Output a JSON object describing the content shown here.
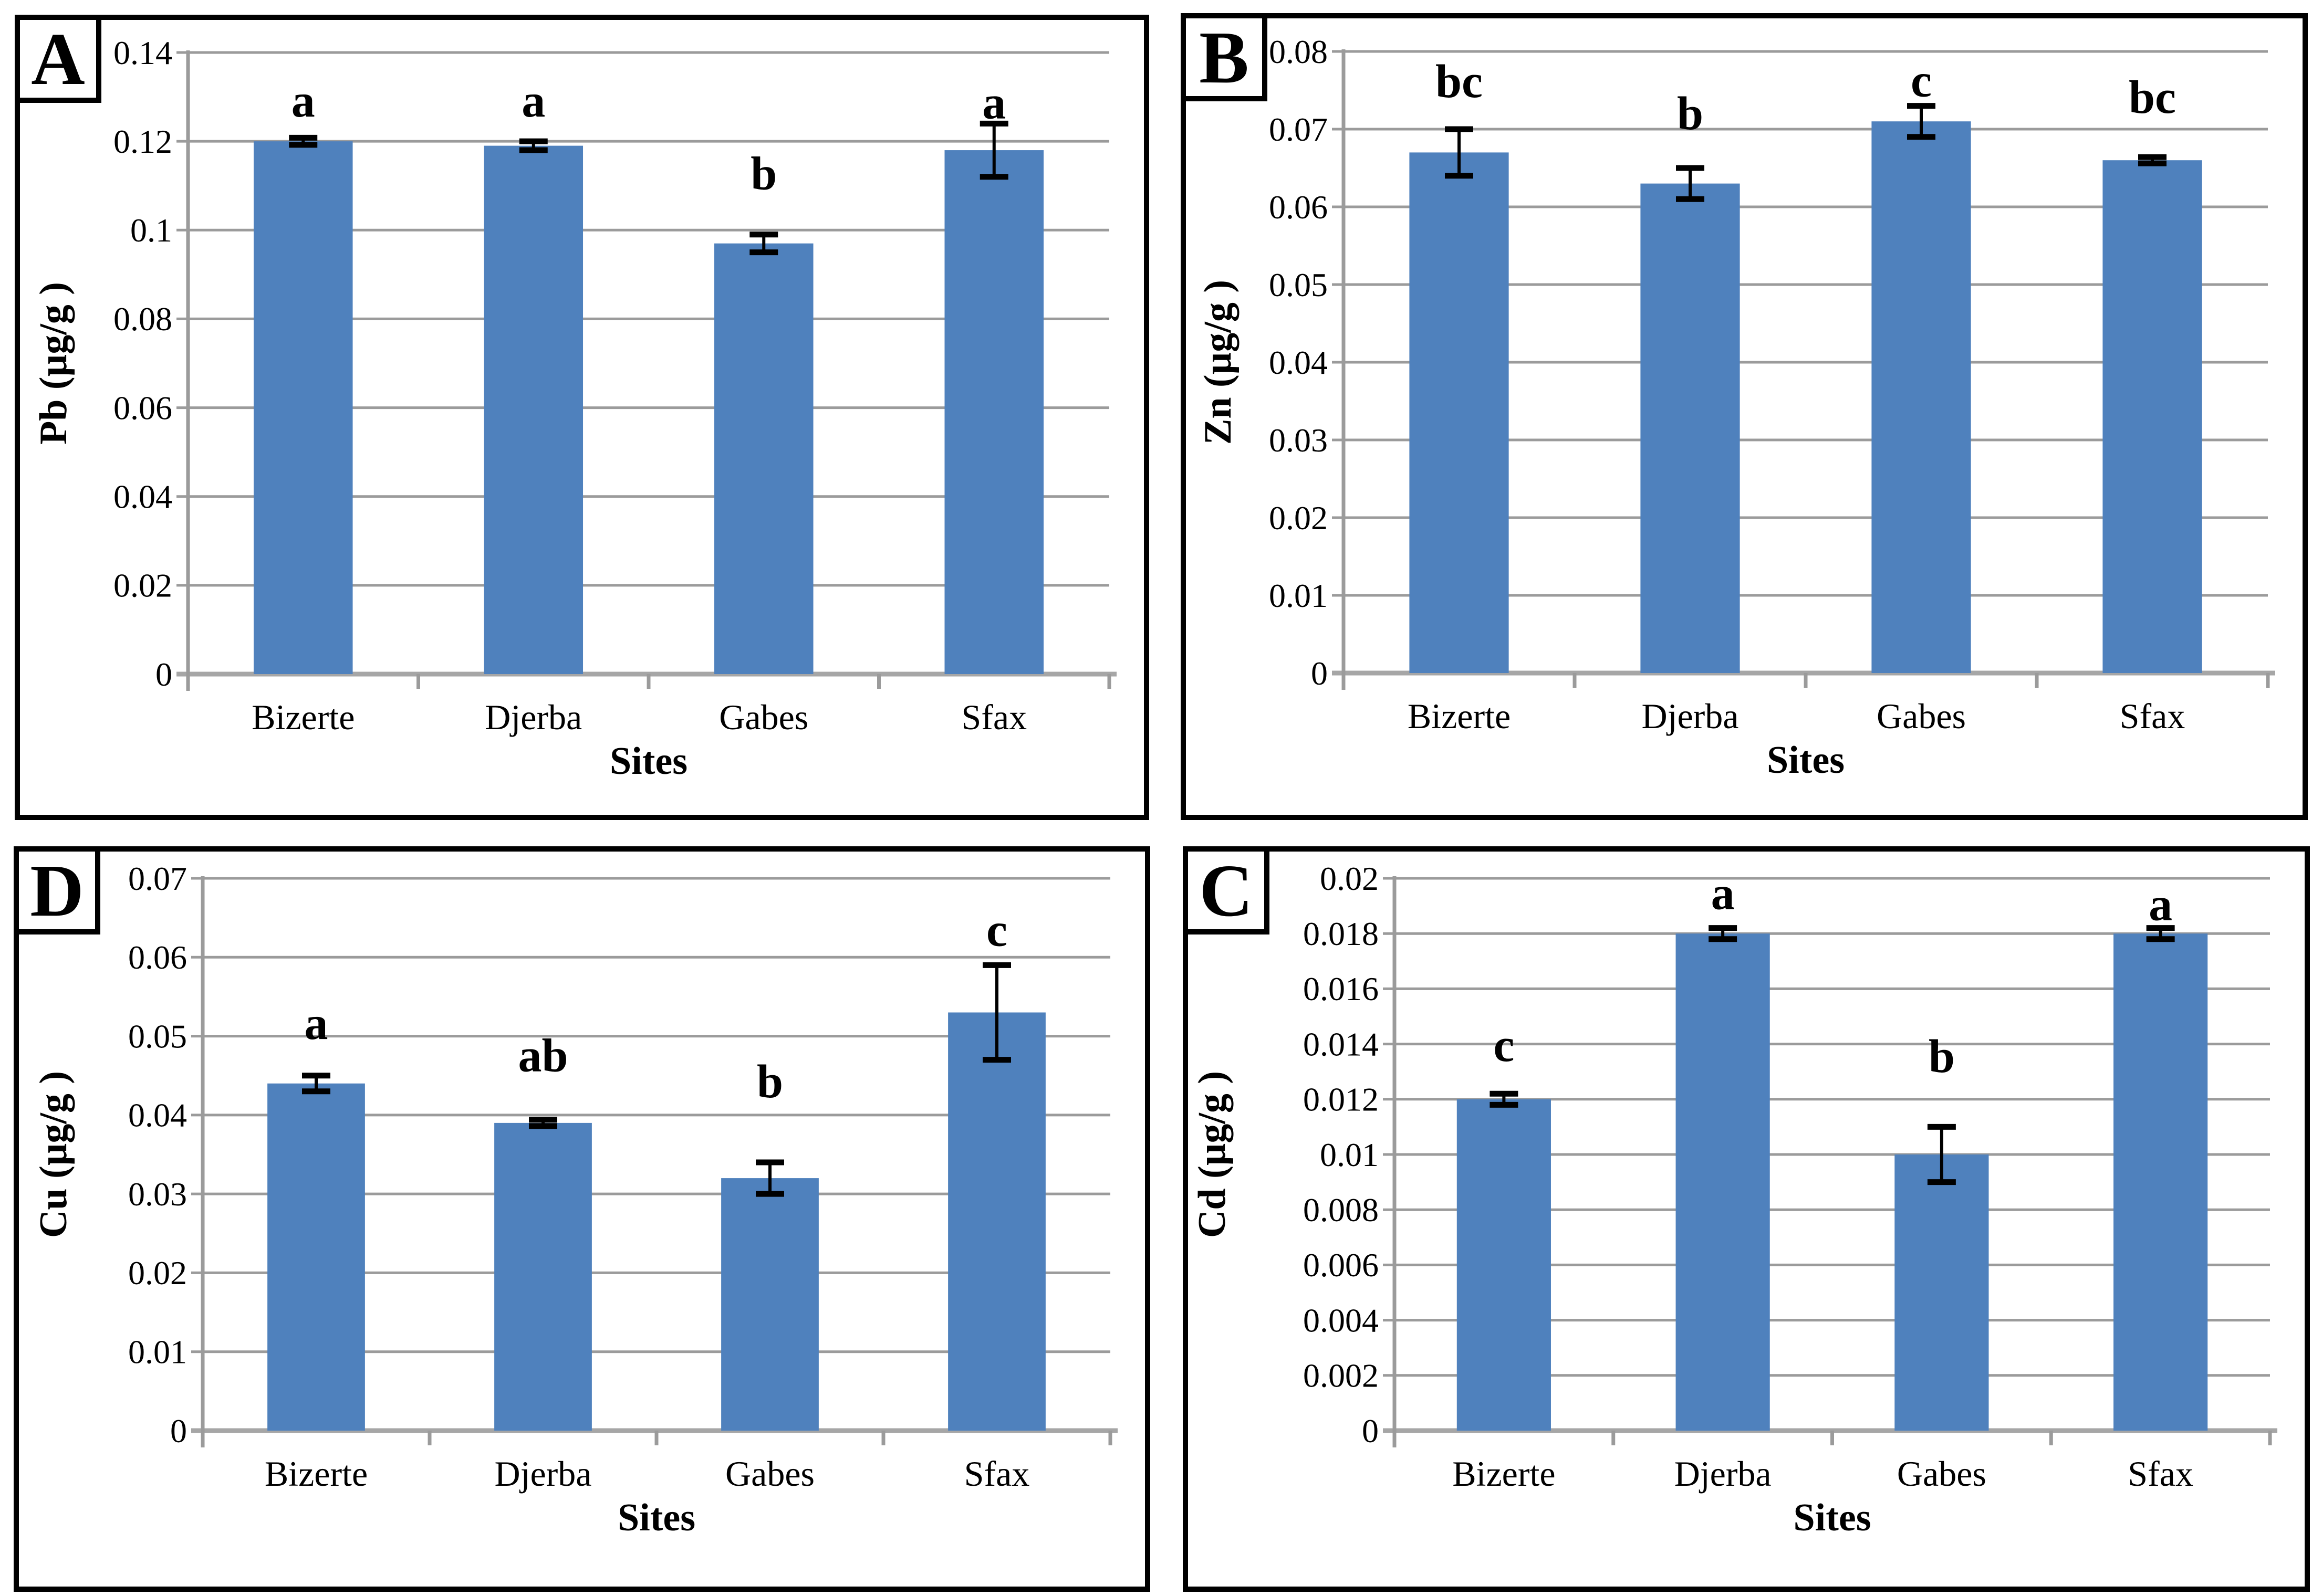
{
  "figure": {
    "background": "#ffffff",
    "x_axis_title": "Sites",
    "categories": [
      "Bizerte",
      "Djerba",
      "Gabes",
      "Sfax"
    ],
    "colors": {
      "bar": "#4F81BD",
      "gridline": "#9B9B9B",
      "baseline": "#A6A6A6",
      "axis_line": "#9B9B9B",
      "error": "#000000",
      "text": "#000000",
      "panel_border": "#000000"
    }
  },
  "chart_data": [
    {
      "panel_label": "A",
      "type": "bar",
      "position": "top-left",
      "ylabel": "Pb (µg/g )",
      "xlabel": "Sites",
      "categories": [
        "Bizerte",
        "Djerba",
        "Gabes",
        "Sfax"
      ],
      "ymax": 0.14,
      "ystep": 0.02,
      "ylim": [
        0,
        0.14
      ],
      "grid": true,
      "ytick_labels": [
        "0.14",
        "0.12",
        "0.1",
        "0.08",
        "0.06",
        "0.04",
        "0.02",
        "0"
      ],
      "values": [
        0.12,
        0.119,
        0.097,
        0.118
      ],
      "errors": [
        0.0008,
        0.001,
        0.002,
        0.006
      ],
      "sig_letters": [
        "a",
        "a",
        "b",
        "a"
      ],
      "sig_letter_y": [
        0.1294,
        0.1294,
        0.113,
        0.129
      ]
    },
    {
      "panel_label": "B",
      "type": "bar",
      "position": "top-right",
      "ylabel": "Zn (µg/g )",
      "xlabel": "Sites",
      "categories": [
        "Bizerte",
        "Djerba",
        "Gabes",
        "Sfax"
      ],
      "ymax": 0.08,
      "ystep": 0.01,
      "ylim": [
        0,
        0.08
      ],
      "grid": true,
      "ytick_labels": [
        "0.08",
        "0.07",
        "0.06",
        "0.05",
        "0.04",
        "0.03",
        "0.02",
        "0.01",
        "0"
      ],
      "values": [
        0.067,
        0.063,
        0.071,
        0.066
      ],
      "errors": [
        0.003,
        0.002,
        0.002,
        0.0004
      ],
      "sig_letters": [
        "bc",
        "b",
        "c",
        "bc"
      ],
      "sig_letter_y": [
        0.0763,
        0.0722,
        0.0764,
        0.0743
      ]
    },
    {
      "panel_label": "D",
      "type": "bar",
      "position": "bottom-left",
      "ylabel": "Cu (µg/g )",
      "xlabel": "Sites",
      "categories": [
        "Bizerte",
        "Djerba",
        "Gabes",
        "Sfax"
      ],
      "ymax": 0.07,
      "ystep": 0.01,
      "ylim": [
        0,
        0.07
      ],
      "grid": true,
      "ytick_labels": [
        "0.07",
        "0.06",
        "0.05",
        "0.04",
        "0.03",
        "0.02",
        "0.01",
        "0"
      ],
      "values": [
        0.044,
        0.039,
        0.032,
        0.053
      ],
      "errors": [
        0.001,
        0.0004,
        0.002,
        0.006
      ],
      "sig_letters": [
        "a",
        "ab",
        "b",
        "c"
      ],
      "sig_letter_y": [
        0.0518,
        0.0477,
        0.0444,
        0.0636
      ]
    },
    {
      "panel_label": "C",
      "type": "bar",
      "position": "bottom-right",
      "ylabel": "Cd (µg/g )",
      "xlabel": "Sites",
      "categories": [
        "Bizerte",
        "Djerba",
        "Gabes",
        "Sfax"
      ],
      "ymax": 0.02,
      "ystep": 0.002,
      "ylim": [
        0,
        0.02
      ],
      "grid": true,
      "ytick_labels": [
        "0.02",
        "0.018",
        "0.016",
        "0.014",
        "0.012",
        "0.01",
        "0.008",
        "0.006",
        "0.004",
        "0.002",
        "0"
      ],
      "values": [
        0.012,
        0.018,
        0.01,
        0.018
      ],
      "errors": [
        0.0002,
        0.0002,
        0.001,
        0.0002
      ],
      "sig_letters": [
        "c",
        "a",
        "b",
        "a"
      ],
      "sig_letter_y": [
        0.014,
        0.0195,
        0.0136,
        0.0191
      ]
    }
  ]
}
